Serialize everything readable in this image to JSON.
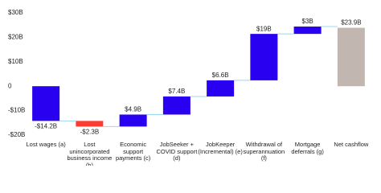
{
  "chart_data": {
    "type": "waterfall",
    "categories": [
      "Lost wages (a)",
      "Lost unincorporated business income (b)",
      "Economic support payments (c)",
      "JobSeeker + COVID support (d)",
      "JobKeeper (Incremental) (e)",
      "Withdrawal of superannuation (f)",
      "Mortgage deferrals (g)",
      "Net cashflow"
    ],
    "values": [
      -14.2,
      -2.3,
      4.9,
      7.4,
      6.6,
      19,
      3,
      23.9
    ],
    "value_labels": [
      "-$14.2B",
      "-$2.3B",
      "$4.9B",
      "$7.4B",
      "$6.6B",
      "$19B",
      "$3B",
      "$23.9B"
    ],
    "is_total": [
      false,
      false,
      false,
      false,
      false,
      false,
      false,
      true
    ],
    "colors": [
      "#2a00f0",
      "#ff3b30",
      "#2a00f0",
      "#2a00f0",
      "#2a00f0",
      "#2a00f0",
      "#2a00f0",
      "#c2b6b0"
    ],
    "connector_color": "#9ad8ee",
    "ylim": [
      -20,
      30
    ],
    "yticks": [
      {
        "value": -20,
        "label": "-$20B"
      },
      {
        "value": -10,
        "label": "-$10B"
      },
      0,
      {
        "value": 10,
        "label": "$10B"
      },
      {
        "value": 20,
        "label": "$20B"
      },
      {
        "value": 30,
        "label": "$30B"
      }
    ],
    "grid": false
  }
}
